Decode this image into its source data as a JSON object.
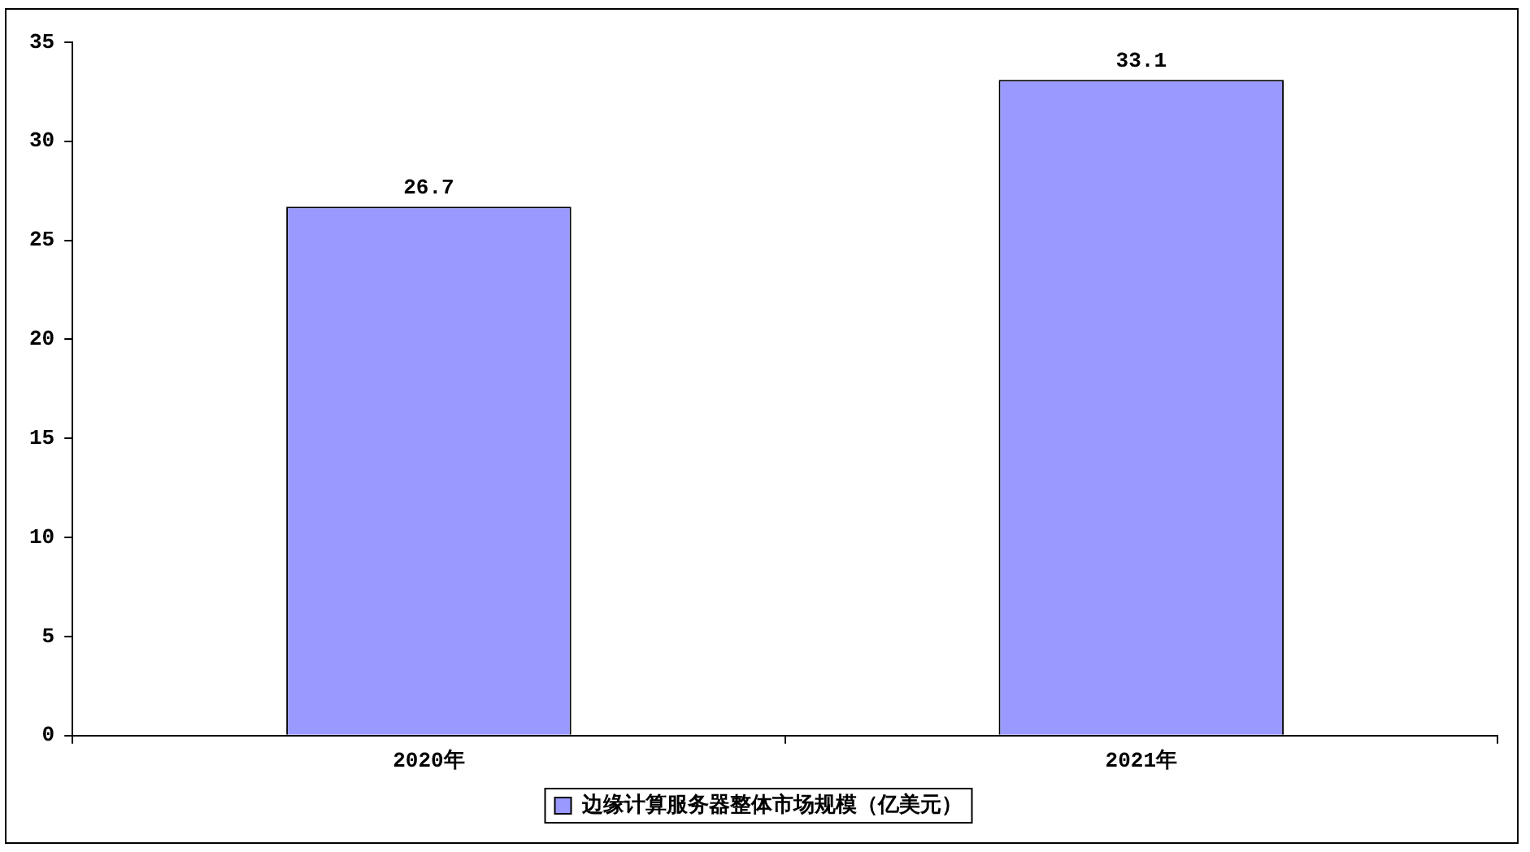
{
  "chart_data": {
    "type": "bar",
    "categories": [
      "2020年",
      "2021年"
    ],
    "series": [
      {
        "name": "边缘计算服务器整体市场规模（亿美元）",
        "color": "#9999ff",
        "values": [
          26.7,
          33.1
        ]
      }
    ],
    "ylim": [
      0,
      35
    ],
    "yticks": [
      0,
      5,
      10,
      15,
      20,
      25,
      30,
      35
    ],
    "grid": false,
    "legend": "bottom",
    "data_labels": true
  }
}
